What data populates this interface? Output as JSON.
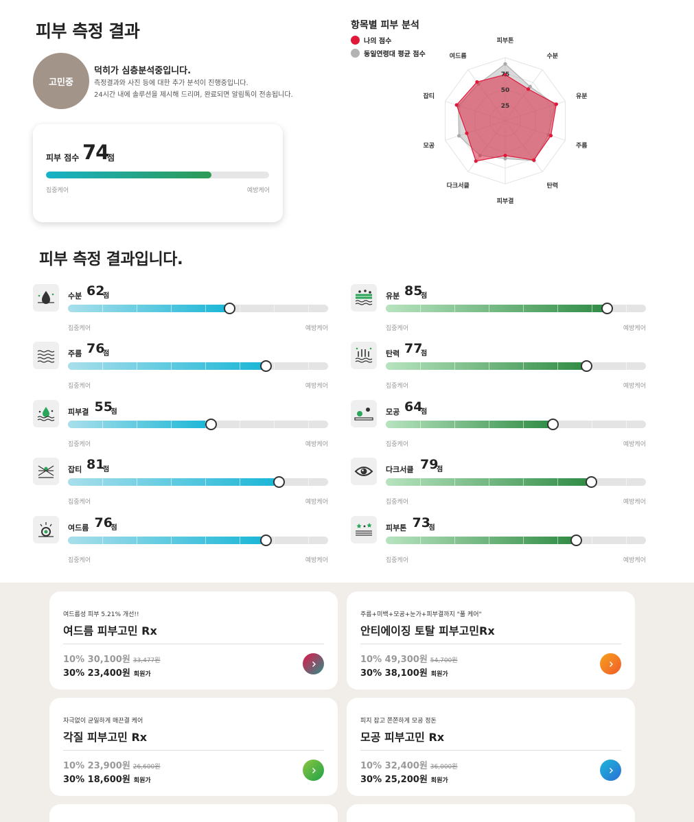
{
  "header": {
    "title": "피부 측정 결과"
  },
  "status": {
    "avatar_text": "고민중",
    "headline": "덕히가 심층분석중입니다.",
    "line1": "측정결과와 사진 등에 대한 추가 분석이 진행중입니다.",
    "line2": "24시간 내에 솔루션을 제시해 드리며, 완료되면 알림톡이 전송됩니다."
  },
  "score_card": {
    "label": "피부 점수",
    "score": "74",
    "unit": "점",
    "value": 74,
    "left_label": "집중케어",
    "right_label": "예방케어"
  },
  "radar": {
    "title": "항목별 피부 분석",
    "legend": [
      {
        "label": "나의 점수",
        "color": "#e0193a"
      },
      {
        "label": "동일연령대 평균 점수",
        "color": "#b3b3b3"
      }
    ],
    "ticks": [
      "25",
      "50",
      "75"
    ]
  },
  "chart_data": {
    "type": "radar",
    "categories": [
      "피부톤",
      "수분",
      "유분",
      "주름",
      "탄력",
      "피부결",
      "다크서클",
      "모공",
      "잡티",
      "여드름"
    ],
    "series": [
      {
        "name": "나의 점수",
        "values": [
          73,
          62,
          85,
          76,
          77,
          55,
          79,
          64,
          81,
          76
        ]
      },
      {
        "name": "동일연령대 평균 점수",
        "values": [
          90,
          67,
          83,
          72,
          78,
          60,
          68,
          77,
          78,
          72
        ]
      }
    ],
    "rmax": 100,
    "ticks": [
      25,
      50,
      75
    ]
  },
  "results": {
    "title": "피부 측정 결과입니다."
  },
  "metrics": {
    "unit": "점",
    "left_label": "집중케어",
    "right_label": "예방케어",
    "items": [
      {
        "label": "수분",
        "score": "62",
        "value": 62,
        "icon": "moisture-icon",
        "color": "blue"
      },
      {
        "label": "유분",
        "score": "85",
        "value": 85,
        "icon": "oil-icon",
        "color": "green"
      },
      {
        "label": "주름",
        "score": "76",
        "value": 76,
        "icon": "wrinkle-icon",
        "color": "blue"
      },
      {
        "label": "탄력",
        "score": "77",
        "value": 77,
        "icon": "elasticity-icon",
        "color": "green"
      },
      {
        "label": "피부결",
        "score": "55",
        "value": 55,
        "icon": "texture-icon",
        "color": "blue"
      },
      {
        "label": "모공",
        "score": "64",
        "value": 64,
        "icon": "pore-icon",
        "color": "green"
      },
      {
        "label": "잡티",
        "score": "81",
        "value": 81,
        "icon": "blemish-icon",
        "color": "blue"
      },
      {
        "label": "다크서클",
        "score": "79",
        "value": 79,
        "icon": "dark-circle-icon",
        "color": "green"
      },
      {
        "label": "여드름",
        "score": "76",
        "value": 76,
        "icon": "acne-icon",
        "color": "blue"
      },
      {
        "label": "피부톤",
        "score": "73",
        "value": 73,
        "icon": "skin-tone-icon",
        "color": "green"
      }
    ]
  },
  "products": [
    {
      "subtitle": "여드름성 피부 5.21% 개선!!",
      "name": "여드름 피부고민 Rx",
      "p1_pct": "10%",
      "p1_price": "30,100원",
      "p1_old": "33,477원",
      "p2_pct": "30%",
      "p2_price": "23,400원",
      "member": "회원가",
      "btn_colors": [
        "#e2174a",
        "#2a8f8a"
      ],
      "btn_icon": "chevron-right-icon"
    },
    {
      "subtitle": "주름+미백+모공+눈가+피부결까지 \"풀 케어\"",
      "name": "안티에이징 토탈 피부고민Rx",
      "p1_pct": "10%",
      "p1_price": "49,300원",
      "p1_old": "54,700원",
      "p2_pct": "30%",
      "p2_price": "38,100원",
      "member": "회원가",
      "btn_colors": [
        "#f7a21d",
        "#f05a2a"
      ],
      "btn_icon": "chevron-right-icon"
    },
    {
      "subtitle": "자극없이 균일하게 매끈결 케어",
      "name": "각질 피부고민 Rx",
      "p1_pct": "10%",
      "p1_price": "23,900원",
      "p1_old": "26,600원",
      "p2_pct": "30%",
      "p2_price": "18,600원",
      "member": "회원가",
      "btn_colors": [
        "#8cc63f",
        "#1fa24a"
      ],
      "btn_icon": "chevron-right-icon"
    },
    {
      "subtitle": "피지 잡고 쫀쫀하게 모공 정돈",
      "name": "모공 피부고민 Rx",
      "p1_pct": "10%",
      "p1_price": "32,400원",
      "p1_old": "36,000원",
      "p2_pct": "30%",
      "p2_price": "25,200원",
      "member": "회원가",
      "btn_colors": [
        "#1db7d9",
        "#2a6fd4"
      ],
      "btn_icon": "chevron-right-icon"
    }
  ]
}
